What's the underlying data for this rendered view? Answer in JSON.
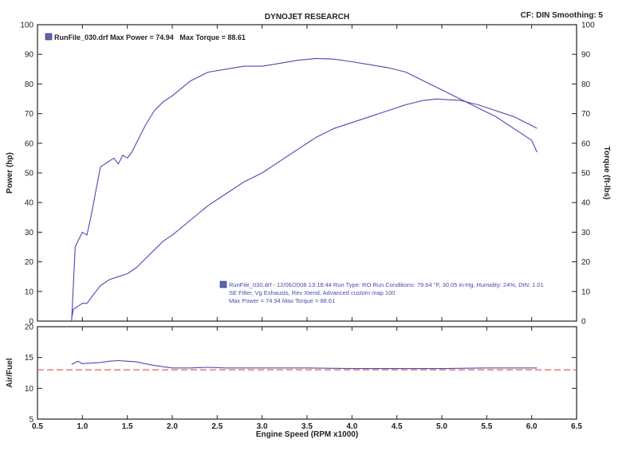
{
  "header": {
    "title": "DYNOJET RESEARCH",
    "right": "CF: DIN  Smoothing: 5"
  },
  "legend": {
    "entry": "RunFile_030.drf Max Power = 74.94   Max Torque = 88.61"
  },
  "run_info": {
    "line1": "RunFile_030.drf - 12/06/2008 13:18:44  Run Type: RO  Run Conditions: 79.64 °F, 30.05 in-Hg,  Humidity:  24%, DIN: 1.01",
    "line2": "SE Filter, Vg Exhausts, Rev Xtend, Advanced custom map 100",
    "line3": "Max Power = 74.94  Max Torque = 88.61"
  },
  "colors": {
    "curve": "#4a4ab0",
    "ref_line": "#e06060",
    "axis": "#222222",
    "legend_box": "#5a62c0"
  },
  "chart_data": [
    {
      "type": "line",
      "xlabel": "",
      "ylabel": "Power (hp)",
      "y2label": "Torque (ft-lbs)",
      "xlim": [
        0.5,
        6.5
      ],
      "ylim": [
        0,
        100
      ],
      "y2lim": [
        0,
        100
      ],
      "yticks": [
        "0",
        "10",
        "20",
        "30",
        "40",
        "50",
        "60",
        "70",
        "80",
        "90",
        "100"
      ],
      "y2ticks": [
        "0",
        "10",
        "20",
        "30",
        "40",
        "50",
        "60",
        "70",
        "80",
        "90",
        "100"
      ],
      "grid": false,
      "series": [
        {
          "name": "Power",
          "axis": "left",
          "x": [
            0.88,
            0.9,
            1.0,
            1.05,
            1.1,
            1.2,
            1.3,
            1.4,
            1.5,
            1.6,
            1.7,
            1.8,
            1.9,
            2.0,
            2.2,
            2.4,
            2.6,
            2.8,
            3.0,
            3.2,
            3.4,
            3.6,
            3.8,
            4.0,
            4.2,
            4.4,
            4.6,
            4.8,
            4.95,
            5.0,
            5.2,
            5.4,
            5.6,
            5.8,
            6.0,
            6.06
          ],
          "y": [
            1,
            4,
            6,
            6,
            8,
            12,
            14,
            15,
            16,
            18,
            21,
            24,
            27,
            29,
            34,
            39,
            43,
            47,
            50,
            54,
            58,
            62,
            65,
            67,
            69,
            71,
            73,
            74.5,
            74.94,
            74.8,
            74.5,
            73,
            71,
            69,
            66,
            65
          ]
        },
        {
          "name": "Torque",
          "axis": "right",
          "x": [
            0.88,
            0.92,
            0.95,
            1.0,
            1.05,
            1.1,
            1.15,
            1.2,
            1.3,
            1.35,
            1.4,
            1.45,
            1.5,
            1.55,
            1.6,
            1.7,
            1.8,
            1.9,
            2.0,
            2.2,
            2.4,
            2.6,
            2.8,
            3.0,
            3.2,
            3.4,
            3.6,
            3.8,
            4.0,
            4.2,
            4.4,
            4.6,
            4.8,
            5.0,
            5.2,
            5.4,
            5.6,
            5.8,
            6.0,
            6.06
          ],
          "y": [
            0,
            25,
            27,
            30,
            29,
            36,
            44,
            52,
            54,
            55,
            53,
            56,
            55,
            57,
            60,
            66,
            71,
            74,
            76,
            81,
            84,
            85,
            86,
            86,
            87,
            88,
            88.61,
            88.4,
            87.5,
            86.5,
            85.5,
            84,
            81,
            78,
            75,
            72,
            69,
            65,
            61,
            57
          ]
        }
      ]
    },
    {
      "type": "line",
      "xlabel": "Engine Speed (RPM x1000)",
      "ylabel": "Air/Fuel",
      "xlim": [
        0.5,
        6.5
      ],
      "ylim": [
        5,
        20
      ],
      "yticks": [
        "5",
        "10",
        "15",
        "20"
      ],
      "xticks": [
        "0.5",
        "1.0",
        "1.5",
        "2.0",
        "2.5",
        "3.0",
        "3.5",
        "4.0",
        "4.5",
        "5.0",
        "5.5",
        "6.0",
        "6.5"
      ],
      "reference_line": 13.0,
      "series": [
        {
          "name": "Air/Fuel",
          "x": [
            0.88,
            0.95,
            1.0,
            1.1,
            1.2,
            1.3,
            1.4,
            1.5,
            1.6,
            1.7,
            1.8,
            2.0,
            2.2,
            2.4,
            2.6,
            2.8,
            3.0,
            3.5,
            4.0,
            4.5,
            5.0,
            5.5,
            6.0,
            6.06
          ],
          "y": [
            13.9,
            14.4,
            14.0,
            14.1,
            14.2,
            14.4,
            14.5,
            14.4,
            14.3,
            14.0,
            13.7,
            13.3,
            13.3,
            13.4,
            13.3,
            13.3,
            13.3,
            13.3,
            13.2,
            13.2,
            13.2,
            13.3,
            13.3,
            13.3
          ]
        }
      ]
    }
  ]
}
